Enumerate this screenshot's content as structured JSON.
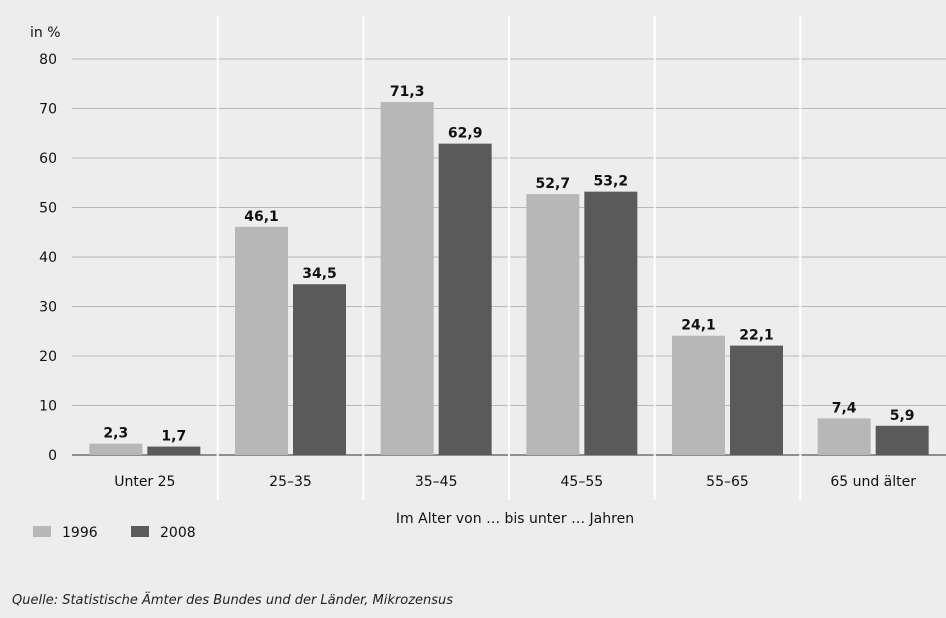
{
  "chart_data": {
    "type": "bar",
    "y_unit_label": "in %",
    "xlabel": "Im Alter von … bis unter … Jahren",
    "categories": [
      "Unter 25",
      "25–35",
      "35–45",
      "45–55",
      "55–65",
      "65 und älter"
    ],
    "series": [
      {
        "name": "1996",
        "values": [
          2.3,
          46.1,
          71.3,
          52.7,
          24.1,
          7.4
        ],
        "color": "#b7b7b7"
      },
      {
        "name": "2008",
        "values": [
          1.7,
          34.5,
          62.9,
          53.2,
          22.1,
          5.9
        ],
        "color": "#5a5a5a"
      }
    ],
    "value_labels": [
      [
        "2,3",
        "46,1",
        "71,3",
        "52,7",
        "24,1",
        "7,4"
      ],
      [
        "1,7",
        "34,5",
        "62,9",
        "53,2",
        "22,1",
        "5,9"
      ]
    ],
    "ylim": [
      0,
      80
    ],
    "yticks": [
      0,
      10,
      20,
      30,
      40,
      50,
      60,
      70,
      80
    ],
    "grid": true,
    "legend_position": "bottom-left"
  },
  "source": "Quelle: Statistische Ämter des Bundes und der Länder, Mikrozensus"
}
